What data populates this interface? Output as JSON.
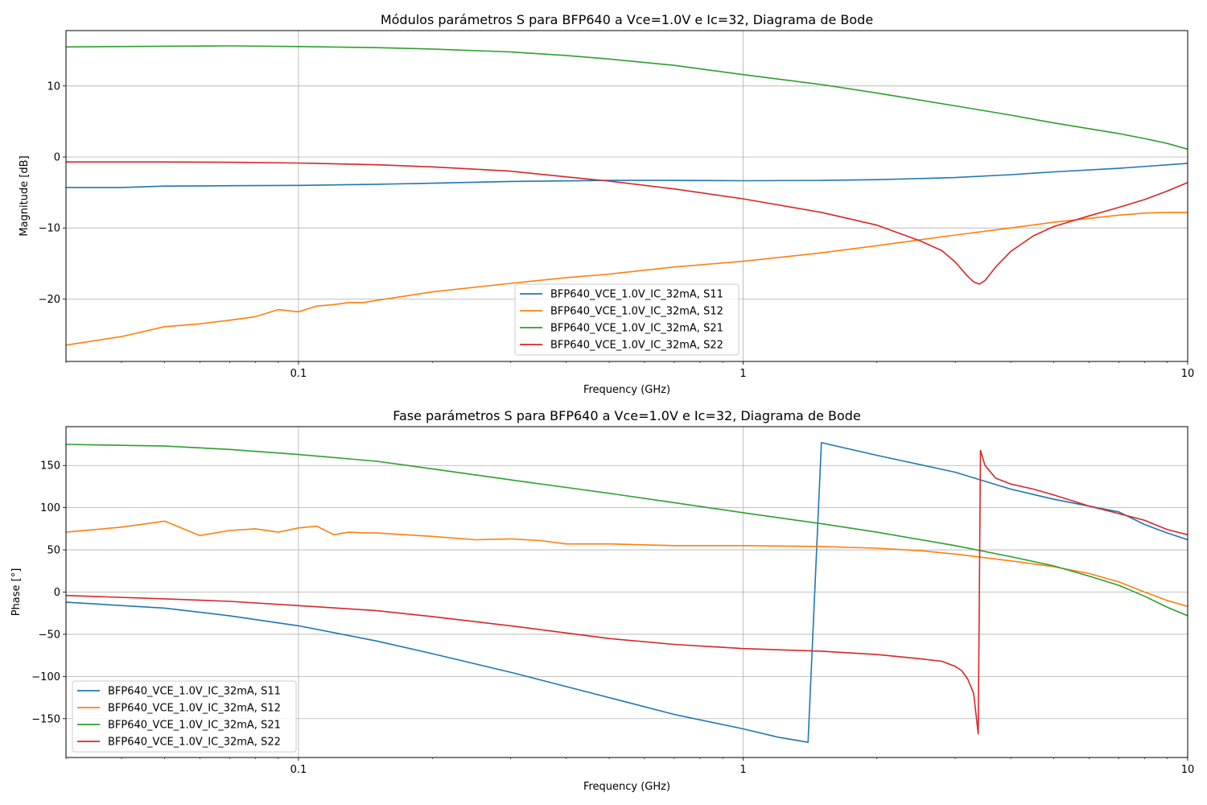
{
  "colors": {
    "S11": "#1f77b4",
    "S12": "#ff7f0e",
    "S21": "#2ca02c",
    "S22": "#d62728",
    "grid": "#b0b0b0"
  },
  "chart_data": [
    {
      "type": "line",
      "title": "Módulos parámetros S para BFP640 a Vce=1.0V e Ic=32, Diagrama de Bode",
      "xlabel": "Frequency (GHz)",
      "ylabel": "Magnitude [dB]",
      "xscale": "log",
      "xlim": [
        0.03,
        10
      ],
      "ylim": [
        -28.8,
        17.8
      ],
      "xticks": [
        {
          "value": 0.1,
          "label": "0.1"
        },
        {
          "value": 1,
          "label": "1"
        },
        {
          "value": 10,
          "label": "10"
        }
      ],
      "yticks": [
        {
          "value": -20,
          "label": "−20"
        },
        {
          "value": -10,
          "label": "−10"
        },
        {
          "value": 0,
          "label": "0"
        },
        {
          "value": 10,
          "label": "10"
        }
      ],
      "grid": true,
      "legend": "lower-center",
      "series": [
        {
          "name": "BFP640_VCE_1.0V_IC_32mA, S11",
          "color": "#1f77b4",
          "x": [
            0.03,
            0.04,
            0.05,
            0.07,
            0.1,
            0.15,
            0.2,
            0.3,
            0.5,
            0.7,
            1,
            1.5,
            2,
            3,
            4,
            5,
            7,
            10
          ],
          "y": [
            -4.3,
            -4.3,
            -4.1,
            -4.05,
            -4.0,
            -3.85,
            -3.7,
            -3.45,
            -3.3,
            -3.3,
            -3.35,
            -3.3,
            -3.2,
            -2.9,
            -2.5,
            -2.1,
            -1.6,
            -0.9
          ]
        },
        {
          "name": "BFP640_VCE_1.0V_IC_32mA, S12",
          "color": "#ff7f0e",
          "x": [
            0.03,
            0.04,
            0.05,
            0.06,
            0.07,
            0.08,
            0.09,
            0.1,
            0.11,
            0.12,
            0.13,
            0.14,
            0.15,
            0.2,
            0.3,
            0.4,
            0.5,
            0.7,
            1,
            1.5,
            2,
            3,
            4,
            5,
            7,
            8,
            9,
            10
          ],
          "y": [
            -26.5,
            -25.3,
            -23.9,
            -23.5,
            -23.0,
            -22.5,
            -21.5,
            -21.8,
            -21.0,
            -20.8,
            -20.5,
            -20.5,
            -20.2,
            -19.0,
            -17.8,
            -17.0,
            -16.5,
            -15.5,
            -14.7,
            -13.5,
            -12.5,
            -11.0,
            -10.0,
            -9.2,
            -8.2,
            -7.9,
            -7.8,
            -7.8
          ]
        },
        {
          "name": "BFP640_VCE_1.0V_IC_32mA, S21",
          "color": "#2ca02c",
          "x": [
            0.03,
            0.04,
            0.05,
            0.07,
            0.1,
            0.15,
            0.2,
            0.3,
            0.4,
            0.5,
            0.7,
            1,
            1.5,
            2,
            3,
            4,
            5,
            7,
            8,
            9,
            10
          ],
          "y": [
            15.5,
            15.55,
            15.6,
            15.65,
            15.55,
            15.4,
            15.2,
            14.8,
            14.3,
            13.8,
            12.9,
            11.6,
            10.2,
            9.0,
            7.2,
            5.9,
            4.8,
            3.3,
            2.6,
            1.9,
            1.1
          ]
        },
        {
          "name": "BFP640_VCE_1.0V_IC_32mA, S22",
          "color": "#d62728",
          "x": [
            0.03,
            0.05,
            0.07,
            0.1,
            0.15,
            0.2,
            0.3,
            0.4,
            0.5,
            0.7,
            1,
            1.5,
            2,
            2.5,
            2.8,
            3.0,
            3.2,
            3.3,
            3.4,
            3.5,
            3.7,
            4.0,
            4.5,
            5,
            6,
            7,
            8,
            9,
            10
          ],
          "y": [
            -0.7,
            -0.7,
            -0.75,
            -0.85,
            -1.1,
            -1.4,
            -2.0,
            -2.8,
            -3.4,
            -4.5,
            -5.9,
            -7.8,
            -9.6,
            -11.8,
            -13.2,
            -14.8,
            -16.8,
            -17.6,
            -17.9,
            -17.4,
            -15.5,
            -13.3,
            -11.1,
            -9.8,
            -8.3,
            -7.1,
            -6.0,
            -4.8,
            -3.6
          ]
        }
      ]
    },
    {
      "type": "line",
      "title": "Fase parámetros S para BFP640 a Vce=1.0V e Ic=32, Diagrama de Bode",
      "xlabel": "Frequency (GHz)",
      "ylabel": "Phase [°]",
      "xscale": "log",
      "xlim": [
        0.03,
        10
      ],
      "ylim": [
        -196,
        196
      ],
      "xticks": [
        {
          "value": 0.1,
          "label": "0.1"
        },
        {
          "value": 1,
          "label": "1"
        },
        {
          "value": 10,
          "label": "10"
        }
      ],
      "yticks": [
        {
          "value": -150,
          "label": "−150"
        },
        {
          "value": -100,
          "label": "−100"
        },
        {
          "value": -50,
          "label": "−50"
        },
        {
          "value": 0,
          "label": "0"
        },
        {
          "value": 50,
          "label": "50"
        },
        {
          "value": 100,
          "label": "100"
        },
        {
          "value": 150,
          "label": "150"
        }
      ],
      "grid": true,
      "legend": "lower-left",
      "series": [
        {
          "name": "BFP640_VCE_1.0V_IC_32mA, S11",
          "color": "#1f77b4",
          "x": [
            0.03,
            0.05,
            0.07,
            0.1,
            0.15,
            0.2,
            0.3,
            0.5,
            0.7,
            1,
            1.2,
            1.4,
            1.5,
            2,
            3,
            4,
            5,
            7,
            8,
            9,
            10
          ],
          "y": [
            -12,
            -19,
            -28,
            -40,
            -58,
            -73,
            -95,
            -125,
            -145,
            -162,
            -172,
            -178,
            177,
            162,
            142,
            122,
            110,
            95,
            80,
            70,
            62
          ]
        },
        {
          "name": "BFP640_VCE_1.0V_IC_32mA, S12",
          "color": "#ff7f0e",
          "x": [
            0.03,
            0.04,
            0.05,
            0.06,
            0.07,
            0.08,
            0.09,
            0.1,
            0.11,
            0.12,
            0.13,
            0.14,
            0.15,
            0.2,
            0.25,
            0.3,
            0.35,
            0.4,
            0.5,
            0.7,
            1,
            1.5,
            2,
            2.5,
            3,
            4,
            5,
            6,
            7,
            8,
            9,
            10
          ],
          "y": [
            71,
            77,
            84,
            67,
            73,
            75,
            71,
            76,
            78,
            68,
            71,
            70,
            70,
            66,
            62,
            63,
            61,
            57,
            57,
            55,
            55,
            54,
            52,
            49,
            45,
            37,
            30,
            22,
            12,
            0,
            -10,
            -17
          ]
        },
        {
          "name": "BFP640_VCE_1.0V_IC_32mA, S21",
          "color": "#2ca02c",
          "x": [
            0.03,
            0.05,
            0.07,
            0.1,
            0.15,
            0.2,
            0.3,
            0.4,
            0.5,
            0.7,
            1,
            1.5,
            2,
            3,
            4,
            5,
            6,
            7,
            8,
            9,
            10
          ],
          "y": [
            175,
            173,
            169,
            163,
            155,
            146,
            133,
            124,
            117,
            106,
            94,
            81,
            71,
            55,
            42,
            31,
            19,
            8,
            -5,
            -18,
            -28
          ]
        },
        {
          "name": "BFP640_VCE_1.0V_IC_32mA, S22",
          "color": "#d62728",
          "x": [
            0.03,
            0.05,
            0.07,
            0.1,
            0.15,
            0.2,
            0.3,
            0.5,
            0.7,
            1,
            1.5,
            2,
            2.5,
            2.8,
            3.0,
            3.1,
            3.2,
            3.3,
            3.38,
            3.42,
            3.5,
            3.7,
            4.0,
            4.5,
            5,
            6,
            7,
            8,
            9,
            10
          ],
          "y": [
            -4,
            -8,
            -11,
            -16,
            -22,
            -29,
            -40,
            -55,
            -62,
            -67,
            -70,
            -74,
            -79,
            -82,
            -88,
            -93,
            -103,
            -120,
            -168,
            168,
            150,
            135,
            128,
            122,
            115,
            102,
            93,
            85,
            74,
            68
          ]
        }
      ]
    }
  ]
}
